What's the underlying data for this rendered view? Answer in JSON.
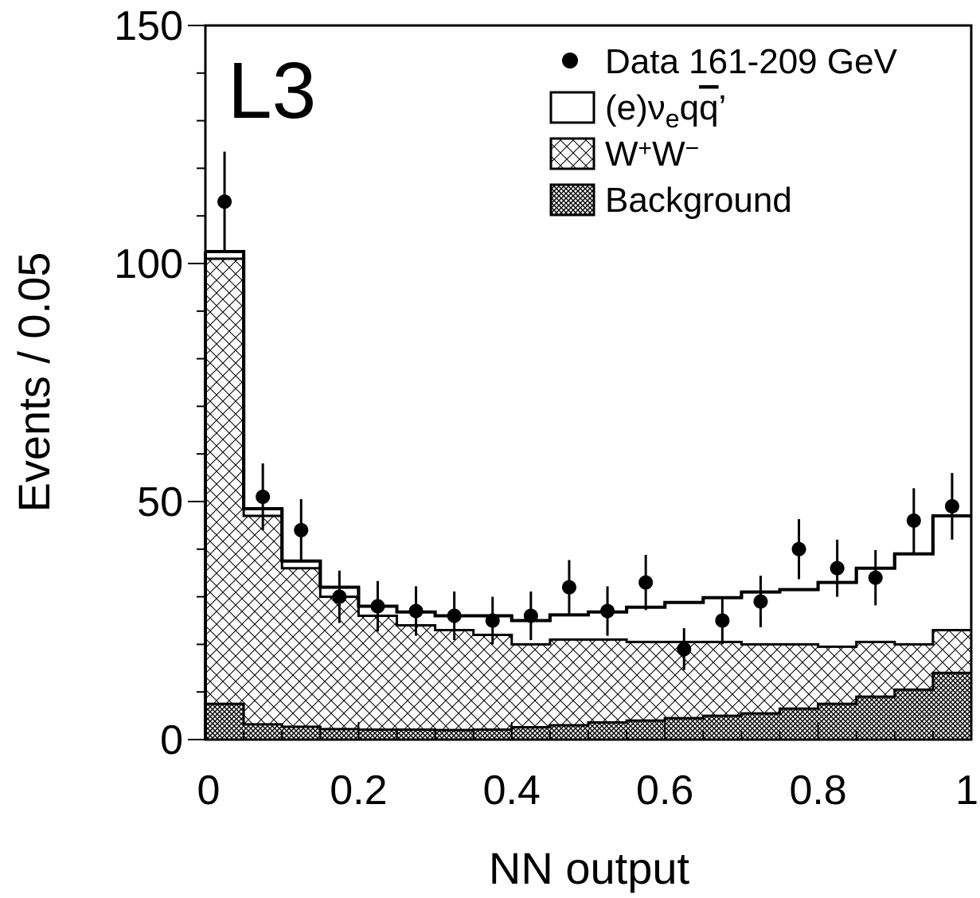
{
  "chart_data": {
    "type": "histogram",
    "experiment_label": "L3",
    "xlabel": "NN output",
    "ylabel": "Events / 0.05",
    "xlim": [
      0,
      1
    ],
    "ylim": [
      0,
      150
    ],
    "x_ticks": [
      0,
      0.2,
      0.4,
      0.6,
      0.8,
      1
    ],
    "x_tick_labels": [
      "0",
      "0.2",
      "0.4",
      "0.6",
      "0.8",
      "1"
    ],
    "y_ticks": [
      0,
      50,
      100,
      150
    ],
    "y_tick_labels": [
      "0",
      "50",
      "100",
      "150"
    ],
    "bin_edges": [
      0,
      0.05,
      0.1,
      0.15,
      0.2,
      0.25,
      0.3,
      0.35,
      0.4,
      0.45,
      0.5,
      0.55,
      0.6,
      0.65,
      0.7,
      0.75,
      0.8,
      0.85,
      0.9,
      0.95,
      1.0
    ],
    "legend": {
      "position": "top-right",
      "entries": [
        {
          "key": "data",
          "prefix": "Data 161-209 GeV"
        },
        {
          "key": "signal",
          "prefix": "(e)ν",
          "sub": "e",
          "mid": "q",
          "overline": "q",
          "suffix": "’"
        },
        {
          "key": "ww",
          "prefix": "W",
          "sup1": "+",
          "mid": "W",
          "sup2": "−"
        },
        {
          "key": "background",
          "prefix": "Background"
        }
      ]
    },
    "series": [
      {
        "name": "Background",
        "style": "dense-crosshatch",
        "values": [
          7.5,
          3.2,
          2.7,
          2.2,
          2.1,
          2.1,
          2.0,
          2.1,
          2.6,
          3.0,
          3.6,
          4.0,
          4.5,
          5.0,
          5.5,
          6.5,
          7.5,
          9.0,
          10.5,
          14.0
        ]
      },
      {
        "name": "W+W−",
        "style": "hatch",
        "stacked_total": true,
        "values": [
          101,
          47,
          36,
          30,
          26,
          24,
          23,
          22,
          20,
          21,
          21,
          20.5,
          20.5,
          20.5,
          20,
          20,
          19.5,
          20.5,
          20,
          23
        ]
      },
      {
        "name": "(e)νeqq̄’",
        "style": "outline",
        "stacked_total": true,
        "values": [
          102.5,
          48.5,
          37.5,
          32,
          28,
          26.8,
          26,
          26,
          25,
          26.2,
          26.8,
          27.8,
          28.8,
          29.8,
          31,
          31.5,
          33,
          36,
          39,
          47
        ]
      },
      {
        "name": "Data 161-209 GeV",
        "style": "points",
        "values": [
          113,
          51,
          44,
          30,
          28,
          27,
          26,
          25,
          26,
          32,
          27,
          33,
          19,
          25,
          29,
          40,
          36,
          34,
          46,
          49
        ],
        "errors": [
          10.5,
          7,
          6.5,
          5.5,
          5.3,
          5.2,
          5.1,
          5,
          5.1,
          5.7,
          5.2,
          5.8,
          4.4,
          5,
          5.4,
          6.3,
          6,
          5.8,
          6.8,
          7
        ]
      }
    ]
  }
}
